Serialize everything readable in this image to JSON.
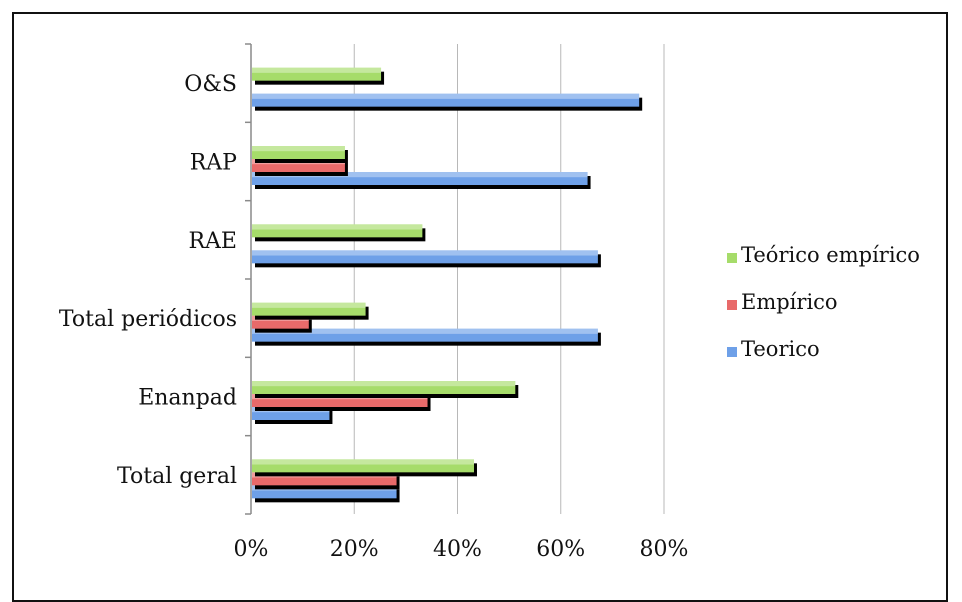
{
  "chart_data": {
    "type": "bar",
    "orientation": "horizontal",
    "categories": [
      "Total geral",
      "Enanpad",
      "Total periódicos",
      "RAE",
      "RAP",
      "O&S"
    ],
    "series": [
      {
        "name": "Teorico",
        "color": "#6ea0e8",
        "values": [
          0.28,
          0.15,
          0.67,
          0.67,
          0.65,
          0.75
        ]
      },
      {
        "name": "Empírico",
        "color": "#e86a6a",
        "values": [
          0.28,
          0.34,
          0.11,
          0.0,
          0.18,
          0.0
        ]
      },
      {
        "name": "Teórico empírico",
        "color": "#a6dc6a",
        "values": [
          0.43,
          0.51,
          0.22,
          0.33,
          0.18,
          0.25
        ]
      }
    ],
    "xlim": [
      0,
      0.8
    ],
    "xticks": [
      0,
      0.2,
      0.4,
      0.6,
      0.8
    ],
    "xtick_labels": [
      "0%",
      "20%",
      "40%",
      "60%",
      "80%"
    ],
    "grid": "vertical",
    "legend_position": "right",
    "legend_order": [
      "Teórico empírico",
      "Empírico",
      "Teorico"
    ],
    "title": "",
    "xlabel": "",
    "ylabel": ""
  }
}
